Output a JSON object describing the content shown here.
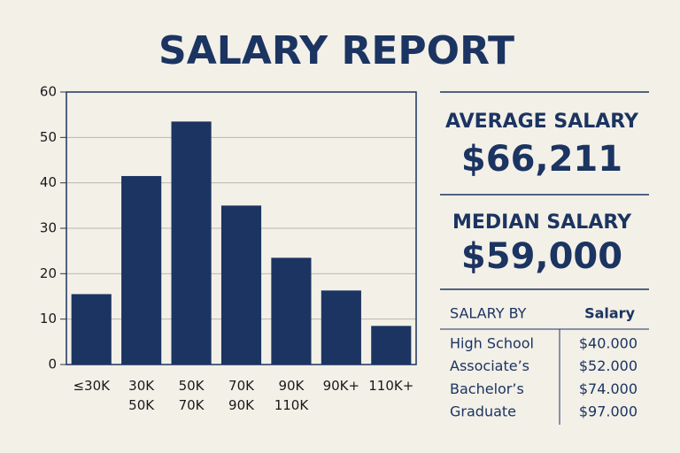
{
  "header": {
    "title": "SALARY REPORT"
  },
  "chart_data": {
    "type": "bar",
    "categories": [
      [
        "≤30K"
      ],
      [
        "30K",
        "50K"
      ],
      [
        "50K",
        "70K"
      ],
      [
        "70K",
        "90K"
      ],
      [
        "90K",
        "110K"
      ],
      [
        "90K+"
      ],
      [
        "110K+"
      ]
    ],
    "values": [
      15.5,
      41.5,
      53.5,
      35,
      23.5,
      16.3,
      8.5
    ],
    "color": "#1b3461",
    "ylim": [
      0,
      60
    ],
    "yticks": [
      0,
      10,
      20,
      30,
      40,
      50,
      60
    ],
    "grid": true
  },
  "stats": [
    {
      "label": "AVERAGE SALARY",
      "value": "$66,211"
    },
    {
      "label": "MEDIAN SALARY",
      "value": "$59,000"
    }
  ],
  "table": {
    "header": [
      "SALARY BY",
      "Salary"
    ],
    "rows": [
      [
        "High School",
        "$40.000"
      ],
      [
        "Associate’s",
        "$52.000"
      ],
      [
        "Bachelor’s",
        "$74.000"
      ],
      [
        "Graduate",
        "$97.000"
      ]
    ]
  }
}
